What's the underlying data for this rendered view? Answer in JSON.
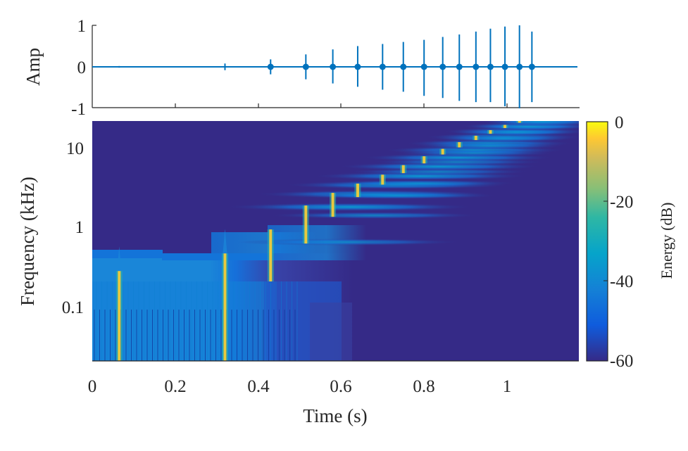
{
  "chart_data": [
    {
      "type": "line",
      "panel": "waveform",
      "title": "",
      "xlabel": "",
      "ylabel": "Amp",
      "ylim": [
        -1,
        1
      ],
      "xlim": [
        0,
        1.17
      ],
      "yticks": [
        -1,
        0,
        1
      ],
      "ytick_labels": [
        "-1",
        "0",
        "1"
      ],
      "xticks": [
        0,
        0.2,
        0.4,
        0.6,
        0.8,
        1
      ],
      "grid": false,
      "line_color": "#0072BD",
      "baseline": 0,
      "pulses": [
        {
          "t": 0.065,
          "amp_max": 0.02,
          "amp_min": -0.02
        },
        {
          "t": 0.32,
          "amp_max": 0.08,
          "amp_min": -0.08
        },
        {
          "t": 0.43,
          "amp_max": 0.18,
          "amp_min": -0.18
        },
        {
          "t": 0.515,
          "amp_max": 0.3,
          "amp_min": -0.3
        },
        {
          "t": 0.58,
          "amp_max": 0.42,
          "amp_min": -0.4
        },
        {
          "t": 0.64,
          "amp_max": 0.5,
          "amp_min": -0.48
        },
        {
          "t": 0.7,
          "amp_max": 0.55,
          "amp_min": -0.55
        },
        {
          "t": 0.75,
          "amp_max": 0.6,
          "amp_min": -0.6
        },
        {
          "t": 0.8,
          "amp_max": 0.65,
          "amp_min": -0.7
        },
        {
          "t": 0.845,
          "amp_max": 0.72,
          "amp_min": -0.75
        },
        {
          "t": 0.885,
          "amp_max": 0.78,
          "amp_min": -0.82
        },
        {
          "t": 0.925,
          "amp_max": 0.85,
          "amp_min": -0.85
        },
        {
          "t": 0.96,
          "amp_max": 0.92,
          "amp_min": -0.85
        },
        {
          "t": 0.995,
          "amp_max": 0.97,
          "amp_min": -0.95
        },
        {
          "t": 1.03,
          "amp_max": 1.0,
          "amp_min": -1.0
        },
        {
          "t": 1.06,
          "amp_max": 0.85,
          "amp_min": -0.85
        }
      ]
    },
    {
      "type": "heatmap",
      "panel": "spectrogram",
      "title": "",
      "xlabel": "Time (s)",
      "ylabel": "Frequency (kHz)",
      "xlim": [
        0,
        1.17
      ],
      "ylim": [
        0.02,
        21
      ],
      "yscale": "log",
      "xticks": [
        0,
        0.2,
        0.4,
        0.6,
        0.8,
        1
      ],
      "xtick_labels": [
        "0",
        "0.2",
        "0.4",
        "0.6",
        "0.8",
        "1"
      ],
      "yticks": [
        0.1,
        1,
        10
      ],
      "ytick_labels": [
        "0.1",
        "1",
        "10"
      ],
      "colormap": "parula",
      "colorbar": {
        "label": "Energy (dB)",
        "range": [
          -60,
          0
        ],
        "ticks": [
          0,
          -20,
          -40,
          -60
        ],
        "tick_labels": [
          "0",
          "-20",
          "-40",
          "-60"
        ]
      },
      "background_color": "#352A87",
      "peaks": [
        {
          "t": 0.065,
          "f_center_khz": 0.15,
          "f_low_khz": 0.02,
          "f_high_khz": 0.45
        },
        {
          "t": 0.32,
          "f_center_khz": 0.2,
          "f_low_khz": 0.02,
          "f_high_khz": 0.75
        },
        {
          "t": 0.43,
          "f_center_khz": 0.45,
          "f_low_khz": 0.2,
          "f_high_khz": 0.9
        },
        {
          "t": 0.515,
          "f_center_khz": 1.2,
          "f_low_khz": 0.6,
          "f_high_khz": 1.8
        },
        {
          "t": 0.58,
          "f_center_khz": 1.9,
          "f_low_khz": 1.3,
          "f_high_khz": 2.6
        },
        {
          "t": 0.64,
          "f_center_khz": 2.8,
          "f_low_khz": 2.3,
          "f_high_khz": 3.4
        },
        {
          "t": 0.7,
          "f_center_khz": 3.8,
          "f_low_khz": 3.3,
          "f_high_khz": 4.4
        },
        {
          "t": 0.75,
          "f_center_khz": 5.2,
          "f_low_khz": 4.6,
          "f_high_khz": 5.8
        },
        {
          "t": 0.8,
          "f_center_khz": 6.8,
          "f_low_khz": 6.1,
          "f_high_khz": 7.5
        },
        {
          "t": 0.845,
          "f_center_khz": 8.6,
          "f_low_khz": 7.9,
          "f_high_khz": 9.3
        },
        {
          "t": 0.885,
          "f_center_khz": 10.5,
          "f_low_khz": 9.7,
          "f_high_khz": 11.3
        },
        {
          "t": 0.925,
          "f_center_khz": 12.8,
          "f_low_khz": 12.0,
          "f_high_khz": 13.6
        },
        {
          "t": 0.96,
          "f_center_khz": 15.2,
          "f_low_khz": 14.4,
          "f_high_khz": 16.0
        },
        {
          "t": 0.995,
          "f_center_khz": 17.8,
          "f_low_khz": 17.0,
          "f_high_khz": 18.6
        },
        {
          "t": 1.03,
          "f_center_khz": 20.5,
          "f_low_khz": 19.8,
          "f_high_khz": 21.0
        }
      ]
    }
  ],
  "labels": {
    "amp_ylabel": "Amp",
    "amp_ytick_1": "1",
    "amp_ytick_0": "0",
    "amp_ytick_m1": "-1",
    "freq_ylabel": "Frequency (kHz)",
    "freq_ytick_10": "10",
    "freq_ytick_1": "1",
    "freq_ytick_01": "0.1",
    "time_xlabel": "Time (s)",
    "xtick_0": "0",
    "xtick_02": "0.2",
    "xtick_04": "0.4",
    "xtick_06": "0.6",
    "xtick_08": "0.8",
    "xtick_1": "1",
    "cbar_label": "Energy (dB)",
    "cbar_tick_0": "0",
    "cbar_tick_20": "-20",
    "cbar_tick_40": "-40",
    "cbar_tick_60": "-60"
  }
}
